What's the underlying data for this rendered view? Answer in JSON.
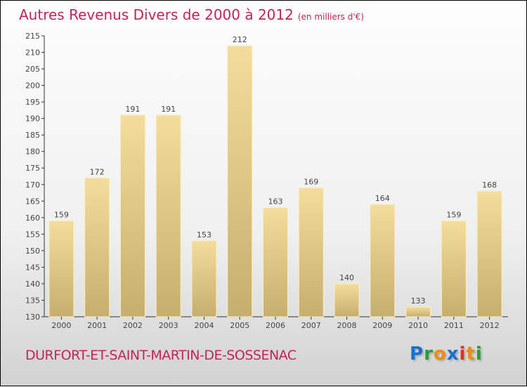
{
  "title": "Autres Revenus Divers de 2000 à 2012",
  "unit": "(en milliers d'€)",
  "commune": "DURFORT-ET-SAINT-MARTIN-DE-SOSSENAC",
  "logo": "Proxiti",
  "colors": {
    "title": "#c0255a",
    "bar_top": "#f3dc9a",
    "bar_bottom": "#c8b070"
  },
  "chart_data": {
    "type": "bar",
    "title": "Autres Revenus Divers de 2000 à 2012",
    "xlabel": "",
    "ylabel": "",
    "categories": [
      "2000",
      "2001",
      "2002",
      "2003",
      "2004",
      "2005",
      "2006",
      "2007",
      "2008",
      "2009",
      "2010",
      "2011",
      "2012"
    ],
    "values": [
      159,
      172,
      191,
      191,
      153,
      212,
      163,
      169,
      140,
      164,
      133,
      159,
      168
    ],
    "ylim": [
      130,
      215
    ],
    "yticks": [
      130,
      135,
      140,
      145,
      150,
      155,
      160,
      165,
      170,
      175,
      180,
      185,
      190,
      195,
      200,
      205,
      210,
      215
    ]
  }
}
